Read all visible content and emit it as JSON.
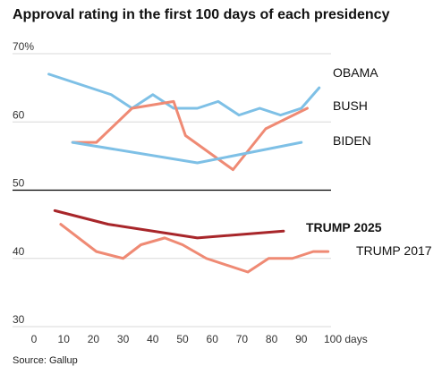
{
  "chart_data": {
    "type": "line",
    "title": "Approval rating in the first 100 days of each presidency",
    "source": "Source: Gallup",
    "x_ticks": [
      "0",
      "10",
      "20",
      "30",
      "40",
      "50",
      "60",
      "70",
      "80",
      "90",
      "100 days"
    ],
    "y_ticks": [
      "70%",
      "60",
      "50",
      "40",
      "30"
    ],
    "xlim": [
      0,
      100
    ],
    "ylim": [
      30,
      70
    ],
    "colors": {
      "obama": "#7ec0e6",
      "bush": "#ef8a74",
      "biden": "#7ec0e6",
      "trump2025": "#a8262a",
      "trump2017": "#ef8a74",
      "axis": "#000000",
      "grid": "#d8d8d8"
    },
    "series": [
      {
        "key": "obama",
        "name": "OBAMA",
        "label_style": "normal",
        "points": [
          [
            5,
            67
          ],
          [
            26,
            64
          ],
          [
            33,
            62
          ],
          [
            40,
            64
          ],
          [
            47,
            62
          ],
          [
            55,
            62
          ],
          [
            62,
            63
          ],
          [
            69,
            61
          ],
          [
            76,
            62
          ],
          [
            83,
            61
          ],
          [
            90,
            62
          ],
          [
            96,
            65
          ]
        ]
      },
      {
        "key": "bush",
        "name": "BUSH",
        "label_style": "normal",
        "points": [
          [
            13,
            57
          ],
          [
            21,
            57
          ],
          [
            33,
            62
          ],
          [
            47,
            63
          ],
          [
            51,
            58
          ],
          [
            67,
            53
          ],
          [
            78,
            59
          ],
          [
            92,
            62
          ]
        ]
      },
      {
        "key": "biden",
        "name": "BIDEN",
        "label_style": "normal",
        "points": [
          [
            13,
            57
          ],
          [
            55,
            54
          ],
          [
            90,
            57
          ]
        ]
      },
      {
        "key": "trump2025",
        "name": "TRUMP 2025",
        "label_style": "bold",
        "points": [
          [
            7,
            47
          ],
          [
            25,
            45
          ],
          [
            55,
            43
          ],
          [
            84,
            44
          ]
        ]
      },
      {
        "key": "trump2017",
        "name": "TRUMP 2017",
        "label_style": "normal",
        "points": [
          [
            9,
            45
          ],
          [
            21,
            41
          ],
          [
            30,
            40
          ],
          [
            36,
            42
          ],
          [
            44,
            43
          ],
          [
            50,
            42
          ],
          [
            58,
            40
          ],
          [
            72,
            38
          ],
          [
            79,
            40
          ],
          [
            87,
            40
          ],
          [
            94,
            41
          ],
          [
            99,
            41
          ]
        ]
      }
    ]
  }
}
